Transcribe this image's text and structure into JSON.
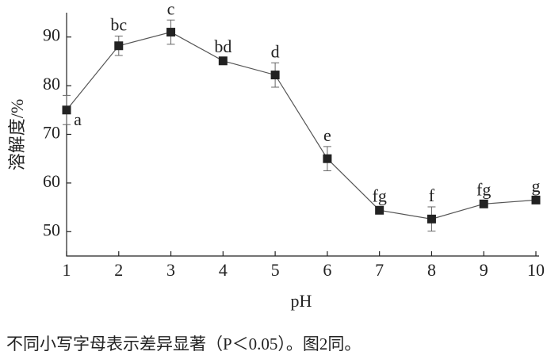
{
  "chart_data": {
    "type": "line",
    "x_label": "pH",
    "y_label": "溶解度/%",
    "x": [
      1,
      2,
      3,
      4,
      5,
      6,
      7,
      8,
      9,
      10
    ],
    "series": [
      {
        "color": "#222222",
        "values": [
          75,
          88.2,
          91,
          85.1,
          82.2,
          65,
          54.4,
          52.6,
          55.7,
          56.5
        ],
        "errors": [
          3,
          2,
          2.5,
          0.6,
          2.5,
          2.5,
          0.6,
          2.5,
          0.6,
          0.6
        ],
        "letters": [
          "a",
          "bc",
          "c",
          "bd",
          "d",
          "e",
          "fg",
          "f",
          "fg",
          "g"
        ]
      }
    ],
    "xlim": [
      1,
      10
    ],
    "ylim": [
      45,
      95
    ],
    "xticks": [
      1,
      2,
      3,
      4,
      5,
      6,
      7,
      8,
      9,
      10
    ],
    "yticks": [
      50,
      60,
      70,
      80,
      90
    ],
    "grid": false,
    "caption": "不同小写字母表示差异显著（P＜0.05）。图2同。"
  }
}
